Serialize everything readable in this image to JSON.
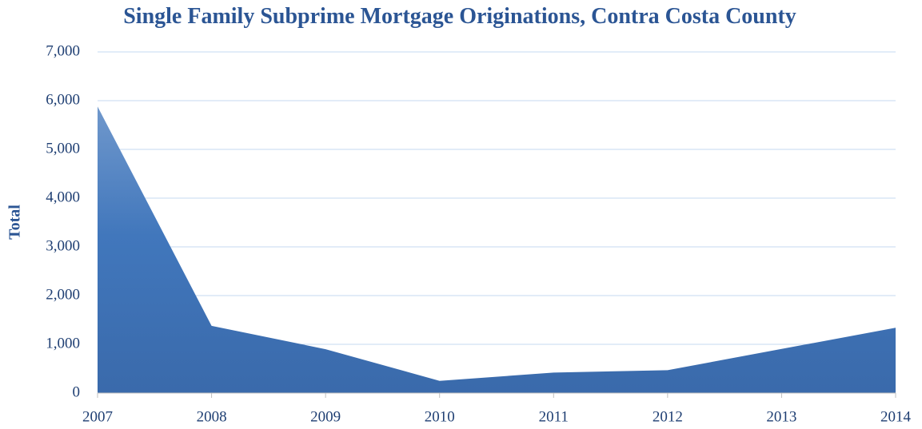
{
  "chart_data": {
    "type": "area",
    "title": "Single Family Subprime Mortgage Originations, Contra Costa County",
    "y_label": "Total",
    "categories": [
      "2007",
      "2008",
      "2009",
      "2010",
      "2011",
      "2012",
      "2013",
      "2014"
    ],
    "values": [
      5880,
      1380,
      900,
      250,
      420,
      470,
      905,
      1340
    ],
    "color": "#4a7cc0",
    "ylim": [
      0,
      7000
    ],
    "yticks": [
      0,
      {
        "value": 1000,
        "label": "1,000"
      },
      {
        "value": 2000,
        "label": "2,000"
      },
      {
        "value": 3000,
        "label": "3,000"
      },
      {
        "value": 4000,
        "label": "4,000"
      },
      {
        "value": 5000,
        "label": "5,000"
      },
      {
        "value": 6000,
        "label": "6,000"
      },
      {
        "value": 7000,
        "label": "7,000"
      }
    ],
    "grid": true
  }
}
